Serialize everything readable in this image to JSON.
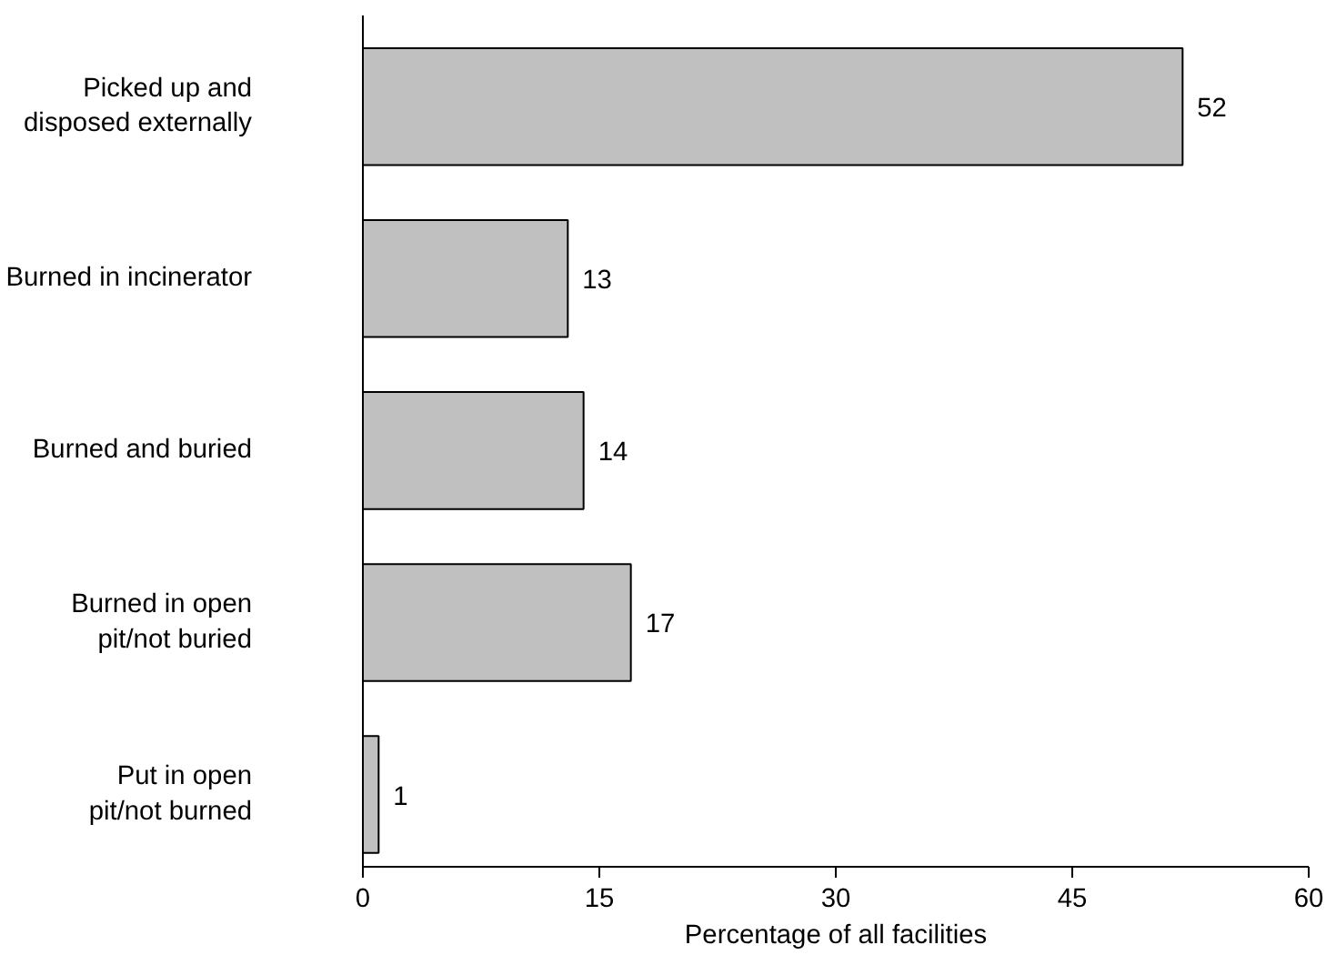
{
  "chart_data": {
    "type": "bar",
    "orientation": "horizontal",
    "xlabel": "Percentage of all facilities",
    "categories": [
      "Picked up and\ndisposed externally",
      "Burned in incinerator",
      "Burned and buried",
      "Burned in open\npit/not buried",
      "Put in open\npit/not burned"
    ],
    "values": [
      52,
      13,
      14,
      17,
      1
    ],
    "color": "#c0c0c0",
    "xlim": [
      0,
      60
    ],
    "xticks": [
      0,
      15,
      30,
      45,
      60
    ],
    "grid": false,
    "data_labels": true
  }
}
